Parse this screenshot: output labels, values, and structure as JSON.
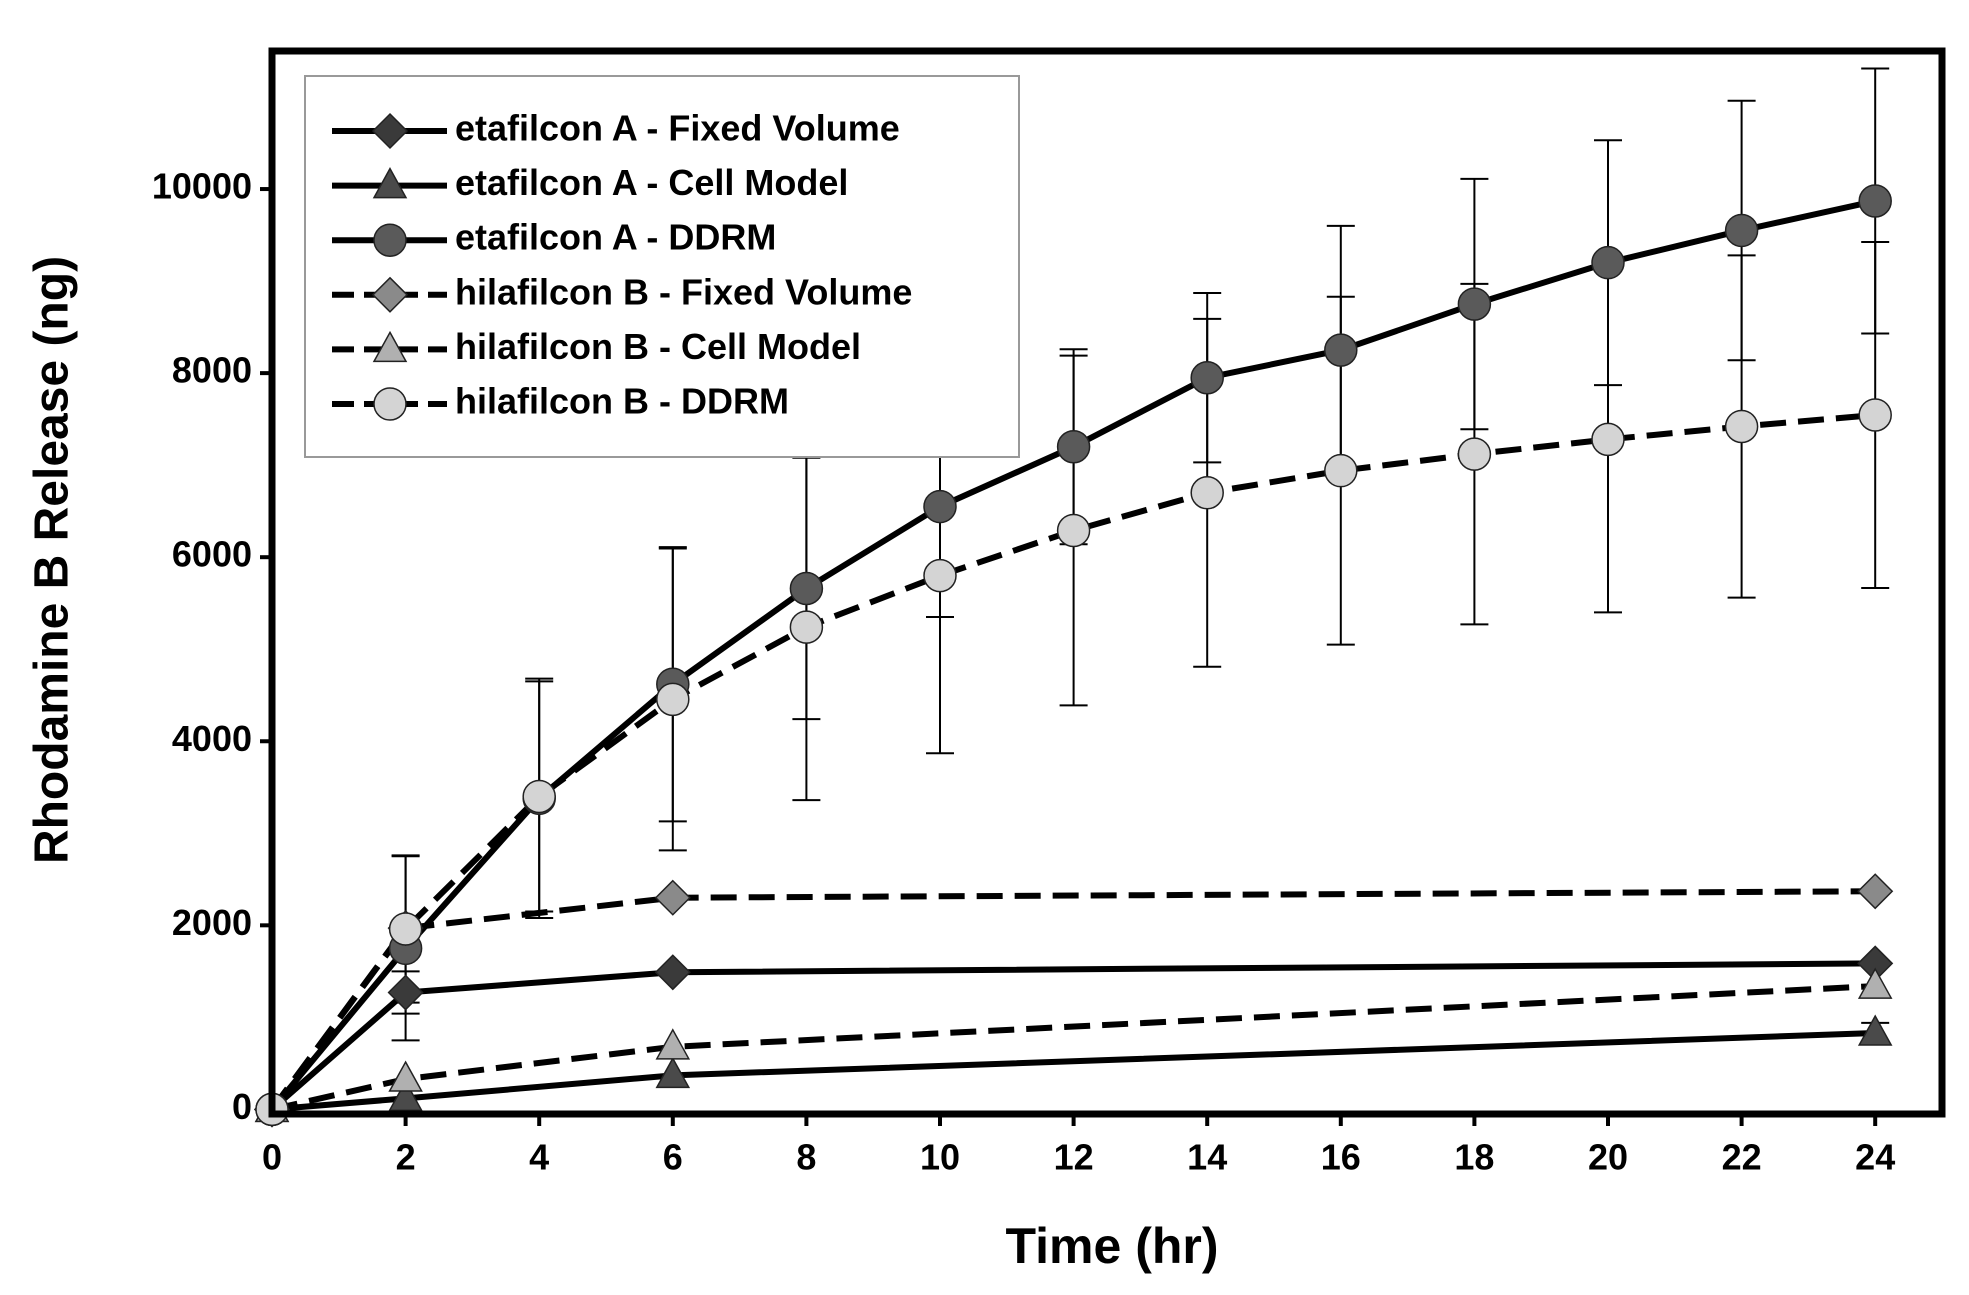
{
  "chart_data": {
    "type": "line",
    "x_label": "Time (hr)",
    "y_label": "Rhodamine B Release (ng)",
    "xlim": [
      0,
      25
    ],
    "xticks": [
      0,
      2,
      4,
      6,
      8,
      10,
      12,
      14,
      16,
      18,
      20,
      22,
      24
    ],
    "ylim": [
      -50,
      11500
    ],
    "yticks": [
      0,
      2000,
      4000,
      6000,
      8000,
      10000
    ],
    "legend": "upper left",
    "series": [
      {
        "name": "etafilcon A - Fixed Volume",
        "color": "#3a3a3a",
        "marker": "diamond",
        "line_style": "solid",
        "x": [
          0,
          2,
          6,
          24
        ],
        "values": [
          0,
          1270,
          1490,
          1586
        ],
        "errors": [
          null,
          230,
          null,
          null
        ]
      },
      {
        "name": "etafilcon A - Cell Model",
        "color": "#4a4a4a",
        "marker": "triangle",
        "line_style": "solid",
        "x": [
          0,
          2,
          6,
          24
        ],
        "values": [
          0,
          120,
          370,
          830
        ],
        "errors": [
          null,
          null,
          null,
          110
        ]
      },
      {
        "name": "etafilcon A - DDRM",
        "color": "#5a5a5a",
        "marker": "circle",
        "line_style": "solid",
        "x": [
          0,
          2,
          4,
          6,
          8,
          10,
          12,
          14,
          16,
          18,
          20,
          22,
          24
        ],
        "values": [
          0,
          1750,
          3380,
          4620,
          5660,
          6550,
          7200,
          7950,
          8250,
          8750,
          9200,
          9550,
          9870
        ],
        "errors": [
          null,
          1000,
          1300,
          1490,
          1420,
          1200,
          1060,
          920,
          1350,
          1360,
          1330,
          1410,
          1440
        ]
      },
      {
        "name": "hilafilcon B - Fixed Volume",
        "color": "#8a8a8a",
        "marker": "diamond",
        "line_style": "dashed",
        "x": [
          0,
          2,
          6,
          24
        ],
        "values": [
          0,
          1970,
          2300,
          2370
        ],
        "errors": [
          null,
          null,
          null,
          null
        ]
      },
      {
        "name": "hilafilcon B - Cell Model",
        "color": "#b0b0b0",
        "marker": "triangle",
        "line_style": "dashed",
        "x": [
          0,
          2,
          6,
          24
        ],
        "values": [
          0,
          330,
          680,
          1340
        ],
        "errors": [
          null,
          null,
          null,
          null
        ]
      },
      {
        "name": "hilafilcon B - DDRM",
        "color": "#d4d4d4",
        "marker": "circle",
        "line_style": "dashed",
        "x": [
          0,
          2,
          4,
          6,
          8,
          10,
          12,
          14,
          16,
          18,
          20,
          22,
          24
        ],
        "values": [
          0,
          1960,
          3400,
          4455,
          5240,
          5800,
          6290,
          6700,
          6940,
          7120,
          7280,
          7420,
          7545
        ],
        "errors": [
          null,
          800,
          1250,
          1640,
          1880,
          1930,
          1900,
          1890,
          1890,
          1850,
          1880,
          1860,
          1880
        ]
      }
    ]
  }
}
